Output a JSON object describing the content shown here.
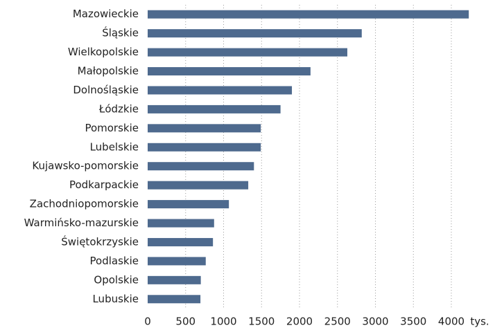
{
  "chart_data": {
    "type": "barh",
    "categories": [
      "Mazowieckie",
      "Śląskie",
      "Wielkopolskie",
      "Małopolskie",
      "Dolnośląskie",
      "Łódzkie",
      "Pomorskie",
      "Lubelskie",
      "Kujawsko-pomorskie",
      "Podkarpackie",
      "Zachodniopomorskie",
      "Warmińsko-mazurskie",
      "Świętokrzyskie",
      "Podlaskie",
      "Opolskie",
      "Lubuskie"
    ],
    "values": [
      4230,
      2820,
      2630,
      2145,
      1900,
      1750,
      1490,
      1490,
      1400,
      1325,
      1070,
      875,
      860,
      765,
      700,
      695
    ],
    "color": "#4e6a8e",
    "xlim": [
      0,
      4000
    ],
    "xticks": [
      0,
      500,
      1000,
      1500,
      2000,
      2500,
      3000,
      3500,
      4000
    ],
    "x_unit": "tys.",
    "grid": true
  }
}
